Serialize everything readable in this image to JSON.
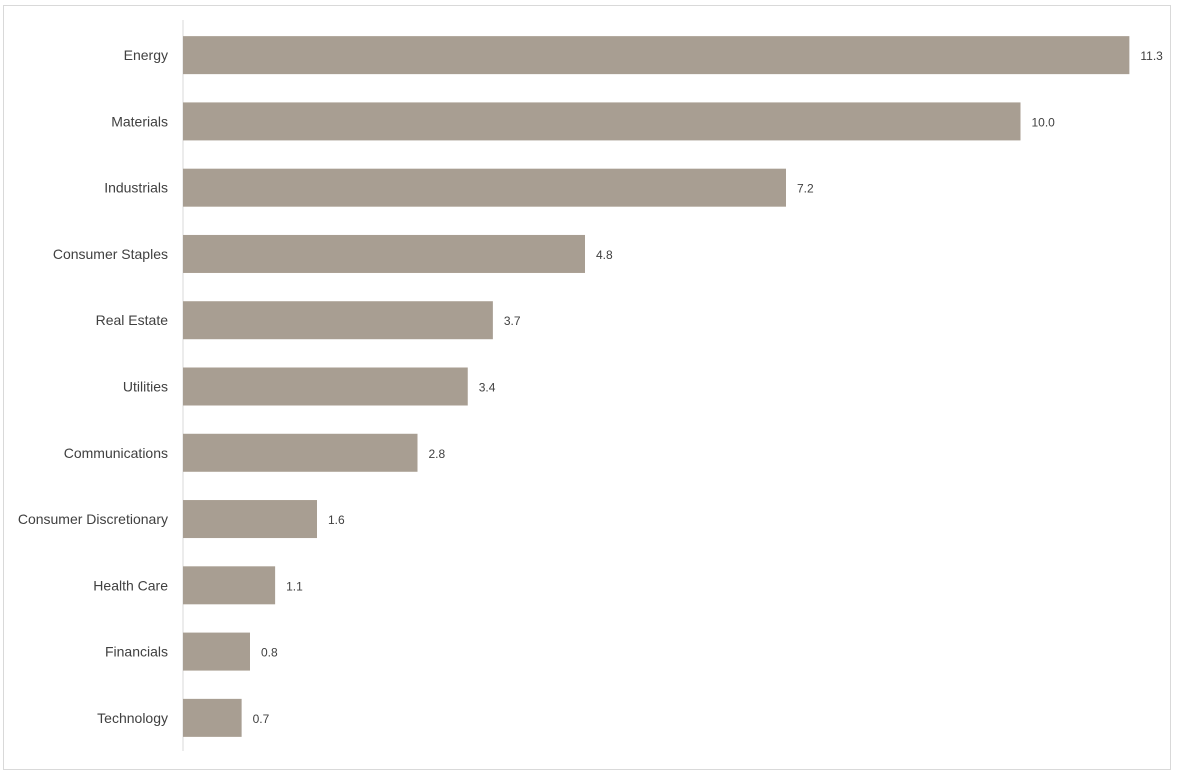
{
  "chart_data": {
    "type": "bar",
    "orientation": "horizontal",
    "categories": [
      "Energy",
      "Materials",
      "Industrials",
      "Consumer Staples",
      "Real Estate",
      "Utilities",
      "Communications",
      "Consumer Discretionary",
      "Health Care",
      "Financials",
      "Technology"
    ],
    "values": [
      11.3,
      10.0,
      7.2,
      4.8,
      3.7,
      3.4,
      2.8,
      1.6,
      1.1,
      0.8,
      0.7
    ],
    "value_labels": [
      "11.3",
      "10.0",
      "7.2",
      "4.8",
      "3.7",
      "3.4",
      "2.8",
      "1.6",
      "1.1",
      "0.8",
      "0.7"
    ],
    "title": "",
    "xlabel": "",
    "ylabel": "",
    "xlim": [
      0,
      12
    ],
    "grid": false,
    "legend": "none",
    "bar_color": "#a89e92",
    "axis_color": "#d9d9d9",
    "text_color": "#404040"
  }
}
